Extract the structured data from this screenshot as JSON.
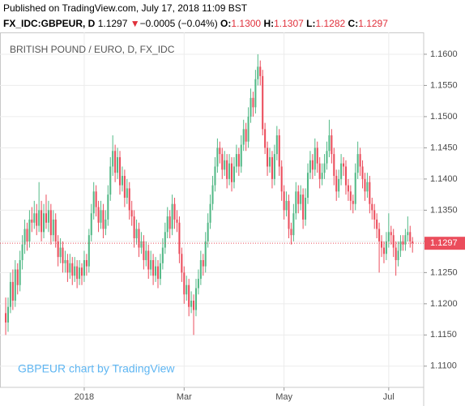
{
  "chart_data": {
    "type": "candlestick",
    "header": {
      "published": "Published on TradingView.com, July 17, 2018 11:09 BST",
      "symbol": "FX_IDC:GBPEUR, D",
      "price": "1.1297",
      "change_arrow": "▼",
      "change": "−0.0005 (−0.04%)",
      "o_label": "O:",
      "open": "1.1300",
      "h_label": "H:",
      "high": "1.1307",
      "l_label": "L:",
      "low": "1.1282",
      "c_label": "C:",
      "close": "1.1297"
    },
    "title": "BRITISH POUND / EURO, D, FX_IDC",
    "watermark": "GBPEUR chart by TradingView",
    "up_color": "#53b987",
    "down_color": "#eb4d5c",
    "grid": true,
    "ylim": [
      1.1066,
      1.1635
    ],
    "yticks": [
      {
        "value": 1.11,
        "label": "1.1100"
      },
      {
        "value": 1.115,
        "label": "1.1150"
      },
      {
        "value": 1.12,
        "label": "1.1200"
      },
      {
        "value": 1.125,
        "label": "1.1250"
      },
      {
        "value": 1.13,
        "label": "1.1300"
      },
      {
        "value": 1.135,
        "label": "1.1350"
      },
      {
        "value": 1.14,
        "label": "1.1400"
      },
      {
        "value": 1.145,
        "label": "1.1450"
      },
      {
        "value": 1.15,
        "label": "1.1500"
      },
      {
        "value": 1.155,
        "label": "1.1550"
      },
      {
        "value": 1.16,
        "label": "1.1600"
      }
    ],
    "xlim": [
      -2.4,
      175.7
    ],
    "xticks": [
      {
        "value": 33,
        "label": "2018"
      },
      {
        "value": 75,
        "label": "Mar"
      },
      {
        "value": 117,
        "label": "May"
      },
      {
        "value": 161,
        "label": "Jul"
      }
    ],
    "candles": [
      [
        1.1185,
        1.121,
        1.115,
        1.117
      ],
      [
        1.117,
        1.121,
        1.1155,
        1.1195
      ],
      [
        1.1195,
        1.125,
        1.1185,
        1.1235
      ],
      [
        1.1235,
        1.1255,
        1.119,
        1.1205
      ],
      [
        1.1205,
        1.127,
        1.1195,
        1.1255
      ],
      [
        1.1255,
        1.1265,
        1.1215,
        1.123
      ],
      [
        1.123,
        1.1285,
        1.122,
        1.127
      ],
      [
        1.127,
        1.131,
        1.1255,
        1.1295
      ],
      [
        1.1295,
        1.1335,
        1.128,
        1.132
      ],
      [
        1.132,
        1.133,
        1.1285,
        1.13
      ],
      [
        1.13,
        1.135,
        1.129,
        1.1335
      ],
      [
        1.1335,
        1.1355,
        1.1315,
        1.133
      ],
      [
        1.133,
        1.1365,
        1.132,
        1.1345
      ],
      [
        1.1345,
        1.136,
        1.131,
        1.1325
      ],
      [
        1.1325,
        1.1395,
        1.1315,
        1.135
      ],
      [
        1.135,
        1.1365,
        1.13,
        1.1315
      ],
      [
        1.1315,
        1.136,
        1.1305,
        1.1345
      ],
      [
        1.1345,
        1.1375,
        1.132,
        1.133
      ],
      [
        1.133,
        1.1365,
        1.1315,
        1.135
      ],
      [
        1.135,
        1.136,
        1.1295,
        1.131
      ],
      [
        1.131,
        1.135,
        1.13,
        1.1335
      ],
      [
        1.1335,
        1.1345,
        1.129,
        1.13
      ],
      [
        1.13,
        1.131,
        1.126,
        1.1275
      ],
      [
        1.1275,
        1.1305,
        1.1265,
        1.129
      ],
      [
        1.129,
        1.13,
        1.125,
        1.1265
      ],
      [
        1.1265,
        1.1285,
        1.125,
        1.127
      ],
      [
        1.127,
        1.128,
        1.1235,
        1.125
      ],
      [
        1.125,
        1.128,
        1.124,
        1.1265
      ],
      [
        1.1265,
        1.1275,
        1.123,
        1.1245
      ],
      [
        1.1245,
        1.1275,
        1.1235,
        1.126
      ],
      [
        1.126,
        1.127,
        1.1225,
        1.124
      ],
      [
        1.124,
        1.127,
        1.123,
        1.1258
      ],
      [
        1.1258,
        1.1265,
        1.123,
        1.1245
      ],
      [
        1.1245,
        1.1285,
        1.1235,
        1.127
      ],
      [
        1.127,
        1.128,
        1.1245,
        1.126
      ],
      [
        1.126,
        1.132,
        1.125,
        1.131
      ],
      [
        1.131,
        1.136,
        1.13,
        1.1345
      ],
      [
        1.1345,
        1.1395,
        1.1335,
        1.138
      ],
      [
        1.138,
        1.139,
        1.134,
        1.1355
      ],
      [
        1.1355,
        1.1365,
        1.1315,
        1.133
      ],
      [
        1.133,
        1.1365,
        1.132,
        1.135
      ],
      [
        1.135,
        1.136,
        1.1305,
        1.132
      ],
      [
        1.132,
        1.135,
        1.131,
        1.1335
      ],
      [
        1.1335,
        1.139,
        1.1325,
        1.1375
      ],
      [
        1.1375,
        1.1435,
        1.1365,
        1.142
      ],
      [
        1.142,
        1.147,
        1.1405,
        1.1445
      ],
      [
        1.1445,
        1.1455,
        1.1395,
        1.141
      ],
      [
        1.141,
        1.145,
        1.14,
        1.1435
      ],
      [
        1.1435,
        1.1445,
        1.1375,
        1.139
      ],
      [
        1.139,
        1.142,
        1.138,
        1.1405
      ],
      [
        1.1405,
        1.1415,
        1.1355,
        1.137
      ],
      [
        1.137,
        1.14,
        1.136,
        1.1385
      ],
      [
        1.1385,
        1.1395,
        1.1335,
        1.135
      ],
      [
        1.135,
        1.1365,
        1.1325,
        1.134
      ],
      [
        1.134,
        1.135,
        1.129,
        1.1305
      ],
      [
        1.1305,
        1.1335,
        1.1295,
        1.132
      ],
      [
        1.132,
        1.133,
        1.1275,
        1.129
      ],
      [
        1.129,
        1.1315,
        1.128,
        1.13
      ],
      [
        1.13,
        1.131,
        1.1255,
        1.127
      ],
      [
        1.127,
        1.13,
        1.126,
        1.1285
      ],
      [
        1.1285,
        1.1295,
        1.124,
        1.1255
      ],
      [
        1.1255,
        1.1285,
        1.1245,
        1.127
      ],
      [
        1.127,
        1.128,
        1.123,
        1.1245
      ],
      [
        1.1245,
        1.1275,
        1.1235,
        1.126
      ],
      [
        1.126,
        1.127,
        1.1225,
        1.124
      ],
      [
        1.124,
        1.128,
        1.123,
        1.1265
      ],
      [
        1.1265,
        1.1305,
        1.1255,
        1.129
      ],
      [
        1.129,
        1.133,
        1.128,
        1.1315
      ],
      [
        1.1315,
        1.1355,
        1.1305,
        1.134
      ],
      [
        1.134,
        1.135,
        1.1305,
        1.132
      ],
      [
        1.132,
        1.1375,
        1.131,
        1.136
      ],
      [
        1.136,
        1.137,
        1.132,
        1.1335
      ],
      [
        1.1335,
        1.135,
        1.1315,
        1.133
      ],
      [
        1.133,
        1.134,
        1.1265,
        1.128
      ],
      [
        1.128,
        1.129,
        1.1235,
        1.125
      ],
      [
        1.125,
        1.126,
        1.12,
        1.1215
      ],
      [
        1.1215,
        1.1245,
        1.1205,
        1.123
      ],
      [
        1.123,
        1.124,
        1.118,
        1.1195
      ],
      [
        1.1195,
        1.122,
        1.1185,
        1.1205
      ],
      [
        1.1205,
        1.1215,
        1.115,
        1.119
      ],
      [
        1.119,
        1.124,
        1.118,
        1.1225
      ],
      [
        1.1225,
        1.1255,
        1.1215,
        1.124
      ],
      [
        1.124,
        1.1285,
        1.123,
        1.127
      ],
      [
        1.127,
        1.128,
        1.1245,
        1.126
      ],
      [
        1.126,
        1.1315,
        1.125,
        1.13
      ],
      [
        1.13,
        1.1345,
        1.129,
        1.133
      ],
      [
        1.133,
        1.1375,
        1.132,
        1.136
      ],
      [
        1.136,
        1.1405,
        1.135,
        1.139
      ],
      [
        1.139,
        1.1435,
        1.138,
        1.142
      ],
      [
        1.142,
        1.1465,
        1.141,
        1.145
      ],
      [
        1.145,
        1.146,
        1.1425,
        1.144
      ],
      [
        1.144,
        1.145,
        1.14,
        1.1415
      ],
      [
        1.1415,
        1.1445,
        1.1405,
        1.143
      ],
      [
        1.143,
        1.144,
        1.1385,
        1.14
      ],
      [
        1.14,
        1.144,
        1.139,
        1.1425
      ],
      [
        1.1425,
        1.1435,
        1.138,
        1.1395
      ],
      [
        1.1395,
        1.1435,
        1.1385,
        1.142
      ],
      [
        1.142,
        1.1455,
        1.141,
        1.144
      ],
      [
        1.144,
        1.145,
        1.1405,
        1.142
      ],
      [
        1.142,
        1.147,
        1.141,
        1.1455
      ],
      [
        1.1455,
        1.1495,
        1.1445,
        1.148
      ],
      [
        1.148,
        1.149,
        1.1445,
        1.146
      ],
      [
        1.146,
        1.1515,
        1.145,
        1.15
      ],
      [
        1.15,
        1.1545,
        1.149,
        1.153
      ],
      [
        1.153,
        1.154,
        1.15,
        1.1515
      ],
      [
        1.1515,
        1.1575,
        1.1505,
        1.156
      ],
      [
        1.156,
        1.16,
        1.155,
        1.158
      ],
      [
        1.158,
        1.159,
        1.155,
        1.1565
      ],
      [
        1.1565,
        1.1575,
        1.147,
        1.148
      ],
      [
        1.148,
        1.149,
        1.144,
        1.145
      ],
      [
        1.145,
        1.146,
        1.1405,
        1.142
      ],
      [
        1.142,
        1.145,
        1.141,
        1.1435
      ],
      [
        1.1435,
        1.1445,
        1.1385,
        1.14
      ],
      [
        1.14,
        1.1455,
        1.139,
        1.144
      ],
      [
        1.144,
        1.1485,
        1.143,
        1.147
      ],
      [
        1.147,
        1.148,
        1.1405,
        1.142
      ],
      [
        1.142,
        1.143,
        1.1365,
        1.138
      ],
      [
        1.138,
        1.139,
        1.1335,
        1.135
      ],
      [
        1.135,
        1.138,
        1.134,
        1.1365
      ],
      [
        1.1365,
        1.1375,
        1.1305,
        1.132
      ],
      [
        1.132,
        1.133,
        1.1295,
        1.131
      ],
      [
        1.131,
        1.136,
        1.13,
        1.1345
      ],
      [
        1.1345,
        1.1395,
        1.1335,
        1.138
      ],
      [
        1.138,
        1.139,
        1.1345,
        1.136
      ],
      [
        1.136,
        1.139,
        1.135,
        1.1375
      ],
      [
        1.1375,
        1.1385,
        1.132,
        1.1335
      ],
      [
        1.1335,
        1.1385,
        1.1325,
        1.137
      ],
      [
        1.137,
        1.1425,
        1.136,
        1.141
      ],
      [
        1.141,
        1.1445,
        1.14,
        1.143
      ],
      [
        1.143,
        1.144,
        1.14,
        1.1415
      ],
      [
        1.1415,
        1.1465,
        1.1405,
        1.145
      ],
      [
        1.145,
        1.146,
        1.141,
        1.1425
      ],
      [
        1.1425,
        1.1435,
        1.1385,
        1.14
      ],
      [
        1.14,
        1.1425,
        1.139,
        1.141
      ],
      [
        1.141,
        1.144,
        1.14,
        1.1425
      ],
      [
        1.1425,
        1.146,
        1.1415,
        1.1445
      ],
      [
        1.1445,
        1.1495,
        1.1435,
        1.147
      ],
      [
        1.147,
        1.148,
        1.1425,
        1.144
      ],
      [
        1.144,
        1.145,
        1.139,
        1.1405
      ],
      [
        1.1405,
        1.1415,
        1.1365,
        1.138
      ],
      [
        1.138,
        1.1415,
        1.137,
        1.14
      ],
      [
        1.14,
        1.144,
        1.139,
        1.1425
      ],
      [
        1.1425,
        1.1435,
        1.1405,
        1.142
      ],
      [
        1.142,
        1.143,
        1.1375,
        1.139
      ],
      [
        1.139,
        1.14,
        1.1365,
        1.138
      ],
      [
        1.138,
        1.139,
        1.135,
        1.1365
      ],
      [
        1.1365,
        1.1375,
        1.1345,
        1.136
      ],
      [
        1.136,
        1.1425,
        1.135,
        1.141
      ],
      [
        1.141,
        1.146,
        1.14,
        1.144
      ],
      [
        1.144,
        1.145,
        1.1405,
        1.142
      ],
      [
        1.142,
        1.143,
        1.1385,
        1.14
      ],
      [
        1.14,
        1.141,
        1.1365,
        1.138
      ],
      [
        1.138,
        1.141,
        1.137,
        1.1395
      ],
      [
        1.1395,
        1.1405,
        1.1345,
        1.136
      ],
      [
        1.136,
        1.137,
        1.1335,
        1.135
      ],
      [
        1.135,
        1.136,
        1.132,
        1.1335
      ],
      [
        1.1335,
        1.1345,
        1.1305,
        1.132
      ],
      [
        1.132,
        1.133,
        1.125,
        1.13
      ],
      [
        1.13,
        1.131,
        1.1275,
        1.129
      ],
      [
        1.129,
        1.13,
        1.1265,
        1.128
      ],
      [
        1.128,
        1.1315,
        1.127,
        1.13
      ],
      [
        1.13,
        1.1345,
        1.129,
        1.1315
      ],
      [
        1.1315,
        1.1325,
        1.1295,
        1.131
      ],
      [
        1.131,
        1.132,
        1.1275,
        1.129
      ],
      [
        1.129,
        1.13,
        1.1245,
        1.127
      ],
      [
        1.127,
        1.13,
        1.126,
        1.1285
      ],
      [
        1.1285,
        1.131,
        1.1275,
        1.13
      ],
      [
        1.13,
        1.131,
        1.1285,
        1.1295
      ],
      [
        1.1295,
        1.132,
        1.1285,
        1.131
      ],
      [
        1.131,
        1.134,
        1.13,
        1.1315
      ],
      [
        1.1315,
        1.1325,
        1.129,
        1.13
      ],
      [
        1.13,
        1.1307,
        1.1282,
        1.1297
      ]
    ]
  }
}
